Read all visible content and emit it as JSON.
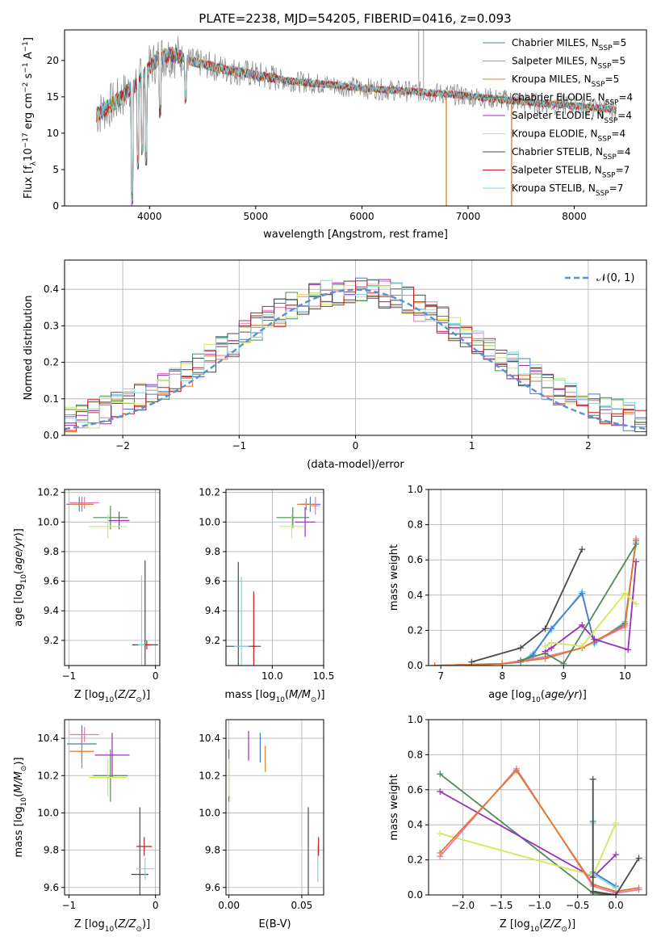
{
  "figure": {
    "title": "PLATE=2238, MJD=54205, FIBERID=0416, z=0.093"
  },
  "chart_data": [
    {
      "type": "line",
      "panel": "spectrum",
      "title": "PLATE=2238, MJD=54205, FIBERID=0416, z=0.093",
      "xlabel": "wavelength [Angstrom, rest frame]",
      "ylabel": "Flux [f_λ 10^-17 erg cm^-2 s^-1 A^-1]",
      "xlim": [
        3200,
        8680
      ],
      "ylim": [
        0,
        24.2
      ],
      "xticks": [
        4000,
        5000,
        6000,
        7000,
        8000
      ],
      "yticks": [
        0,
        5,
        10,
        15,
        20
      ],
      "grid": false,
      "legend_loc": "upper right",
      "series": [
        {
          "name": "Chabrier MILES, N_SSP=5",
          "color": "#4a7cc6"
        },
        {
          "name": "Salpeter MILES, N_SSP=5",
          "color": "#e878b4"
        },
        {
          "name": "Kroupa MILES, N_SSP=5",
          "color": "#e07a2a"
        },
        {
          "name": "Chabrier ELODIE, N_SSP=4",
          "color": "#4f8a59"
        },
        {
          "name": "Salpeter ELODIE, N_SSP=4",
          "color": "#9b2fb5"
        },
        {
          "name": "Kroupa ELODIE, N_SSP=4",
          "color": "#d4e857"
        },
        {
          "name": "Chabrier STELIB, N_SSP=4",
          "color": "#4a4a4a"
        },
        {
          "name": "Salpeter STELIB, N_SSP=7",
          "color": "#c41e1e"
        },
        {
          "name": "Kroupa STELIB, N_SSP=7",
          "color": "#7fd8e0"
        }
      ],
      "continuum": {
        "x": [
          3500,
          3600,
          3700,
          3800,
          3900,
          4000,
          4100,
          4200,
          4300,
          4400,
          4500,
          4700,
          5000,
          5300,
          5600,
          6000,
          6400,
          6800,
          7200,
          7600,
          8000,
          8400
        ],
        "y": [
          12.5,
          13.5,
          14.5,
          15.8,
          17.0,
          19.0,
          20.5,
          20.8,
          20.5,
          19.8,
          19.5,
          18.8,
          18.0,
          17.2,
          16.8,
          16.2,
          15.8,
          15.4,
          14.8,
          14.2,
          13.8,
          13.2
        ]
      },
      "absorption_lines": [
        {
          "x": 3835,
          "y": 0
        },
        {
          "x": 3890,
          "y": 5
        },
        {
          "x": 3934,
          "y": 7
        },
        {
          "x": 3970,
          "y": 5.5
        },
        {
          "x": 4102,
          "y": 12
        },
        {
          "x": 4340,
          "y": 14
        }
      ],
      "sky_lines": [
        {
          "x": 6535,
          "y": 24.2
        },
        {
          "x": 6580,
          "y": 24.2
        },
        {
          "x": 6795,
          "y": 0
        },
        {
          "x": 7410,
          "y": 0
        }
      ]
    },
    {
      "type": "histogram",
      "panel": "residuals",
      "xlabel": "(data-model)/error",
      "ylabel": "Normed distribution",
      "xlim": [
        -2.5,
        2.5
      ],
      "ylim": [
        0,
        0.48
      ],
      "xticks": [
        -2,
        -1,
        0,
        1,
        2
      ],
      "yticks": [
        0.0,
        0.1,
        0.2,
        0.3,
        0.4
      ],
      "grid": true,
      "legend": [
        {
          "name": "N(0, 1)",
          "style": "dashed",
          "color": "#5b8fd6"
        }
      ],
      "legend_loc": "upper right",
      "bin_width": 0.1,
      "reference_curve": "normal(0,1)"
    },
    {
      "type": "scatter",
      "panel": "age_vs_metallicity",
      "xlabel": "Z [log10(Z/Z⊙)]",
      "ylabel": "age  [log10(age/yr)]",
      "xlim": [
        -1.05,
        0.05
      ],
      "ylim": [
        9.03,
        10.22
      ],
      "xticks": [
        -1,
        0
      ],
      "yticks": [
        9.2,
        9.4,
        9.6,
        9.8,
        10.0,
        10.2
      ],
      "grid": true,
      "points": [
        {
          "series": "Chabrier MILES",
          "x": -0.88,
          "y": 10.12,
          "xerr": 0.15,
          "yerr": 0.05
        },
        {
          "series": "Salpeter MILES",
          "x": -0.82,
          "y": 10.13,
          "xerr": 0.17,
          "yerr": 0.04
        },
        {
          "series": "Kroupa MILES",
          "x": -0.85,
          "y": 10.12,
          "xerr": 0.14,
          "yerr": 0.05
        },
        {
          "series": "Chabrier ELODIE",
          "x": -0.52,
          "y": 10.03,
          "xerr": 0.2,
          "yerr": 0.08
        },
        {
          "series": "Salpeter ELODIE",
          "x": -0.42,
          "y": 10.01,
          "xerr": 0.12,
          "yerr": 0.06
        },
        {
          "series": "Kroupa ELODIE",
          "x": -0.55,
          "y": 9.97,
          "xerr": 0.22,
          "yerr": 0.08
        },
        {
          "series": "Chabrier STELIB",
          "x": -0.12,
          "y": 9.17,
          "xerr": 0.15,
          "yerr": 0.57
        },
        {
          "series": "Salpeter STELIB",
          "x": -0.1,
          "y": 9.17,
          "xerr": 0.05,
          "yerr": 0.03
        },
        {
          "series": "Kroupa STELIB",
          "x": -0.16,
          "y": 9.17,
          "xerr": 0.04,
          "yerr": 0.47
        }
      ]
    },
    {
      "type": "scatter",
      "panel": "age_vs_mass",
      "xlabel": "mass [log10(M/M⊙)]",
      "ylabel": "",
      "xlim": [
        9.55,
        10.5
      ],
      "ylim": [
        9.03,
        10.22
      ],
      "xticks": [
        10.0,
        10.5
      ],
      "yticks": [
        9.2,
        9.4,
        9.6,
        9.8,
        10.0,
        10.2
      ],
      "grid": true,
      "points": [
        {
          "series": "Chabrier MILES",
          "x": 10.37,
          "y": 10.12,
          "xerr": 0.1,
          "yerr": 0.05
        },
        {
          "series": "Salpeter MILES",
          "x": 10.42,
          "y": 10.11,
          "xerr": 0.04,
          "yerr": 0.06
        },
        {
          "series": "Kroupa MILES",
          "x": 10.33,
          "y": 10.12,
          "xerr": 0.09,
          "yerr": 0.04
        },
        {
          "series": "Chabrier ELODIE",
          "x": 10.2,
          "y": 10.03,
          "xerr": 0.16,
          "yerr": 0.07
        },
        {
          "series": "Salpeter ELODIE",
          "x": 10.32,
          "y": 10.0,
          "xerr": 0.1,
          "yerr": 0.1
        },
        {
          "series": "Kroupa ELODIE",
          "x": 10.19,
          "y": 9.97,
          "xerr": 0.12,
          "yerr": 0.08
        },
        {
          "series": "Chabrier STELIB",
          "x": 9.67,
          "y": 9.16,
          "xerr": 0.22,
          "yerr": 0.57
        },
        {
          "series": "Salpeter STELIB",
          "x": 9.82,
          "y": 9.16,
          "xerr": 0.02,
          "yerr": 0.37
        },
        {
          "series": "Kroupa STELIB",
          "x": 9.7,
          "y": 9.16,
          "xerr": 0.07,
          "yerr": 0.47
        }
      ]
    },
    {
      "type": "line",
      "panel": "mass_weight_vs_age",
      "xlabel": "age  [log10(age/yr)]",
      "ylabel": "mass weight",
      "xlim": [
        6.8,
        10.35
      ],
      "ylim": [
        0,
        1.0
      ],
      "xticks": [
        7,
        8,
        9,
        10
      ],
      "yticks": [
        0.0,
        0.2,
        0.4,
        0.6,
        0.8,
        1.0
      ],
      "grid": true,
      "series": [
        {
          "name": "Kroupa STELIB",
          "x": [
            6.9,
            8.0,
            8.3,
            8.5,
            8.8,
            9.3,
            9.5,
            10.0,
            10.18
          ],
          "y": [
            0.0,
            0.01,
            0.02,
            0.07,
            0.2,
            0.42,
            0.12,
            0.25,
            0.7
          ]
        },
        {
          "name": "Chabrier MILES",
          "x": [
            6.9,
            8.0,
            8.3,
            8.5,
            8.8,
            9.3,
            9.5,
            10.0,
            10.18
          ],
          "y": [
            0.0,
            0.01,
            0.02,
            0.06,
            0.21,
            0.41,
            0.13,
            0.24,
            0.71
          ]
        },
        {
          "name": "Salpeter MILES",
          "x": [
            6.9,
            8.0,
            8.7,
            9.3,
            10.0,
            10.18
          ],
          "y": [
            0.0,
            0.01,
            0.05,
            0.1,
            0.22,
            0.72
          ]
        },
        {
          "name": "Kroupa MILES",
          "x": [
            6.9,
            8.0,
            8.7,
            9.3,
            10.0,
            10.18
          ],
          "y": [
            0.0,
            0.01,
            0.04,
            0.1,
            0.23,
            0.71
          ]
        },
        {
          "name": "Chabrier ELODIE",
          "x": [
            8.3,
            8.7,
            9.0,
            10.18
          ],
          "y": [
            0.03,
            0.07,
            0.01,
            0.69
          ]
        },
        {
          "name": "Salpeter ELODIE",
          "x": [
            8.7,
            8.8,
            9.3,
            9.5,
            10.05,
            10.18
          ],
          "y": [
            0.08,
            0.1,
            0.23,
            0.15,
            0.09,
            0.59
          ]
        },
        {
          "name": "Kroupa ELODIE",
          "x": [
            8.7,
            8.8,
            9.3,
            10.0,
            10.18
          ],
          "y": [
            0.11,
            0.13,
            0.11,
            0.41,
            0.35
          ]
        },
        {
          "name": "Chabrier STELIB",
          "x": [
            7.5,
            8.3,
            8.7,
            9.3
          ],
          "y": [
            0.02,
            0.1,
            0.21,
            0.66
          ]
        }
      ]
    },
    {
      "type": "scatter",
      "panel": "mass_vs_metallicity",
      "xlabel": "Z [log10(Z/Z⊙)]",
      "ylabel": "mass [log10(M/M⊙)]",
      "xlim": [
        -1.05,
        0.05
      ],
      "ylim": [
        9.56,
        10.5
      ],
      "xticks": [
        -1,
        0
      ],
      "yticks": [
        9.6,
        9.8,
        10.0,
        10.2,
        10.4
      ],
      "grid": true,
      "points": [
        {
          "series": "Chabrier MILES",
          "x": -0.85,
          "y": 10.37,
          "xerr": 0.17,
          "yerr": 0.1
        },
        {
          "series": "Salpeter MILES",
          "x": -0.82,
          "y": 10.42,
          "xerr": 0.17,
          "yerr": 0.04
        },
        {
          "series": "Kroupa MILES",
          "x": -0.85,
          "y": 10.33,
          "xerr": 0.14,
          "yerr": 0.09
        },
        {
          "series": "Chabrier ELODIE",
          "x": -0.52,
          "y": 10.2,
          "xerr": 0.2,
          "yerr": 0.14
        },
        {
          "series": "Salpeter ELODIE",
          "x": -0.5,
          "y": 10.31,
          "xerr": 0.2,
          "yerr": 0.12
        },
        {
          "series": "Kroupa ELODIE",
          "x": -0.55,
          "y": 10.19,
          "xerr": 0.22,
          "yerr": 0.1
        },
        {
          "series": "Chabrier STELIB",
          "x": -0.18,
          "y": 9.67,
          "xerr": 0.1,
          "yerr": 0.36
        },
        {
          "series": "Salpeter STELIB",
          "x": -0.13,
          "y": 9.82,
          "xerr": 0.09,
          "yerr": 0.05
        },
        {
          "series": "Kroupa STELIB",
          "x": -0.12,
          "y": 9.7,
          "xerr": 0.1,
          "yerr": 0.06
        }
      ]
    },
    {
      "type": "scatter",
      "panel": "mass_vs_ebv",
      "xlabel": "E(B-V)",
      "ylabel": "",
      "xlim": [
        -0.002,
        0.065
      ],
      "ylim": [
        9.56,
        10.5
      ],
      "xticks": [
        0.0,
        0.05
      ],
      "yticks": [
        9.6,
        9.8,
        10.0,
        10.2,
        10.4
      ],
      "grid": true,
      "points": [
        {
          "series": "Chabrier ELODIE",
          "x": 0.0,
          "y": 10.2,
          "yerr": 0.14
        },
        {
          "series": "Kroupa ELODIE",
          "x": 0.0,
          "y": 10.19,
          "yerr": 0.1
        },
        {
          "series": "Salpeter ELODIE",
          "x": 0.0135,
          "y": 10.36,
          "yerr": 0.08
        },
        {
          "series": "Chabrier MILES",
          "x": 0.0215,
          "y": 10.35,
          "yerr": 0.08
        },
        {
          "series": "Kroupa MILES",
          "x": 0.025,
          "y": 10.29,
          "yerr": 0.07
        },
        {
          "series": "Chabrier STELIB",
          "x": 0.0545,
          "y": 9.67,
          "yerr": 0.36
        },
        {
          "series": "Kroupa STELIB",
          "x": 0.061,
          "y": 9.73,
          "yerr": 0.1
        },
        {
          "series": "Salpeter STELIB",
          "x": 0.0615,
          "y": 9.82,
          "yerr": 0.05
        }
      ]
    },
    {
      "type": "line",
      "panel": "mass_weight_vs_metallicity",
      "xlabel": "Z [log10(Z/Z⊙)]",
      "ylabel": "mass weight",
      "xlim": [
        -2.45,
        0.4
      ],
      "ylim": [
        0,
        1.0
      ],
      "xticks": [
        -2.0,
        -1.5,
        -1.0,
        -0.5,
        0.0
      ],
      "yticks": [
        0.0,
        0.2,
        0.4,
        0.6,
        0.8,
        1.0
      ],
      "grid": true,
      "series": [
        {
          "name": "Chabrier ELODIE",
          "x": [
            -2.3,
            -0.3,
            0.0
          ],
          "y": [
            0.69,
            0.01,
            0.0
          ]
        },
        {
          "name": "Salpeter ELODIE",
          "x": [
            -2.3,
            -0.3,
            0.0
          ],
          "y": [
            0.59,
            0.1,
            0.23
          ]
        },
        {
          "name": "Kroupa ELODIE",
          "x": [
            -2.3,
            -0.3,
            0.0
          ],
          "y": [
            0.35,
            0.11,
            0.41
          ]
        },
        {
          "name": "Salpeter MILES",
          "x": [
            -2.3,
            -1.3,
            -0.3,
            0.0,
            0.3
          ],
          "y": [
            0.22,
            0.72,
            0.05,
            0.01,
            0.03
          ]
        },
        {
          "name": "Kroupa MILES",
          "x": [
            -2.3,
            -1.3,
            -0.3,
            0.0,
            0.3
          ],
          "y": [
            0.24,
            0.71,
            0.06,
            0.02,
            0.04
          ]
        },
        {
          "name": "Chabrier MILES",
          "x": [
            -0.3,
            -0.3,
            0.0
          ],
          "y": [
            0.42,
            0.13,
            0.05
          ]
        },
        {
          "name": "Kroupa STELIB",
          "x": [
            -0.3,
            -0.3,
            0.0
          ],
          "y": [
            0.41,
            0.12,
            0.04
          ]
        },
        {
          "name": "Chabrier STELIB",
          "x": [
            -0.3,
            -0.3,
            0.0,
            0.3
          ],
          "y": [
            0.66,
            0.02,
            0.0,
            0.21
          ]
        }
      ]
    }
  ]
}
